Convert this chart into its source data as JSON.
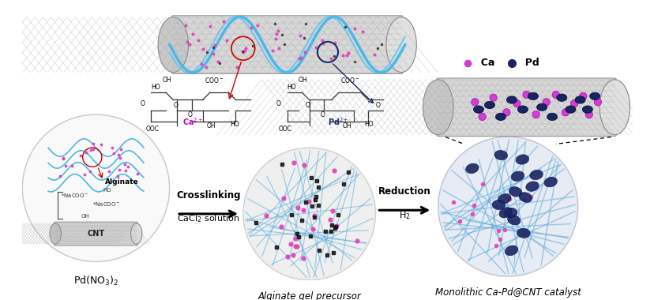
{
  "background_color": "#ffffff",
  "figsize": [
    8.29,
    3.8
  ],
  "dpi": 100,
  "labels": {
    "alginate": "Alginate",
    "cnt": "CNT",
    "pd_salt": "Pd(NO$_3$)$_2$",
    "crosslinking": "Crosslinking",
    "cacl2": "CaCl$_2$ solution",
    "reduction": "Reduction",
    "h2": "H$_2$",
    "gel_precursor": "Alginate gel precursor",
    "monolithic": "Monolithic Ca-Pd@CNT catalyst",
    "ca_label": "Ca",
    "pd_label": "Pd"
  },
  "colors": {
    "background": "#ffffff",
    "cnt_mesh": "#b0b0b0",
    "cnt_fill": "#d0d0d0",
    "cnt_edge": "#909090",
    "alginate_blue": "#4ab8e8",
    "alginate_pink": "#e050b0",
    "ca_dot": "#d040d0",
    "pd_dot": "#1a2560",
    "arrow_color": "#111111",
    "text_color": "#111111",
    "sphere_fill": "#d8d8d8",
    "sphere_fill2": "#c8d4e0",
    "sphere_edge": "#999999",
    "lc_fill": "#f5f5f5",
    "lc_edge": "#aaaaaa"
  }
}
